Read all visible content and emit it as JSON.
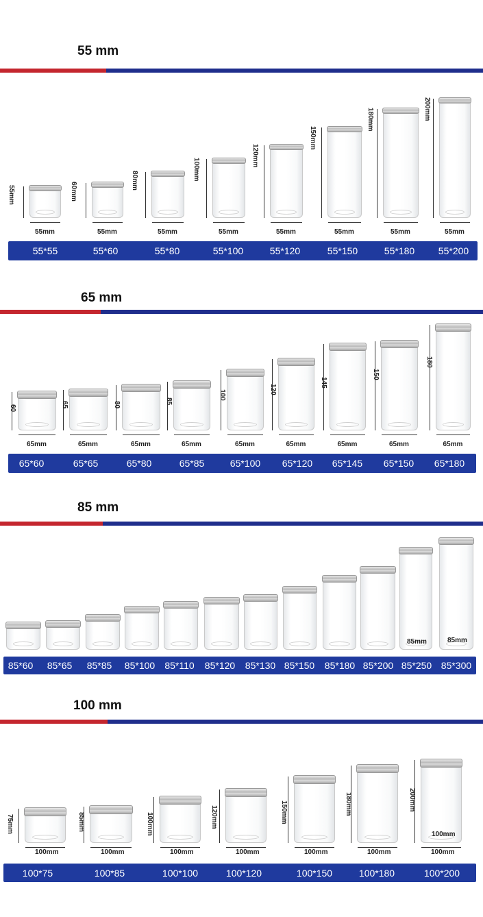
{
  "sections": [
    {
      "title": "55 mm",
      "width_label": "55mm",
      "jars": [
        {
          "label": "55*55",
          "height_label": "55mm",
          "width_label": "55mm"
        },
        {
          "label": "55*60",
          "height_label": "60mm",
          "width_label": "55mm"
        },
        {
          "label": "55*80",
          "height_label": "80mm",
          "width_label": "55mm"
        },
        {
          "label": "55*100",
          "height_label": "100mm",
          "width_label": "55mm"
        },
        {
          "label": "55*120",
          "height_label": "120mm",
          "width_label": "55mm"
        },
        {
          "label": "55*150",
          "height_label": "150mm",
          "width_label": "55mm"
        },
        {
          "label": "55*180",
          "height_label": "180mm",
          "width_label": "55mm"
        },
        {
          "label": "55*200",
          "height_label": "200mm",
          "width_label": "55mm"
        }
      ]
    },
    {
      "title": "65 mm",
      "jars": [
        {
          "label": "65*60",
          "height_label": "60",
          "width_label": "65mm"
        },
        {
          "label": "65*65",
          "height_label": "65",
          "width_label": "65mm"
        },
        {
          "label": "65*80",
          "height_label": "80",
          "width_label": "65mm"
        },
        {
          "label": "65*85",
          "height_label": "85",
          "width_label": "65mm"
        },
        {
          "label": "65*100",
          "height_label": "100",
          "width_label": "65mm"
        },
        {
          "label": "65*120",
          "height_label": "120",
          "width_label": "65mm"
        },
        {
          "label": "65*145",
          "height_label": "145",
          "width_label": "65mm"
        },
        {
          "label": "65*150",
          "height_label": "150",
          "width_label": "65mm"
        },
        {
          "label": "65*180",
          "height_label": "180",
          "width_label": "65mm"
        }
      ]
    },
    {
      "title": "85 mm",
      "jars": [
        {
          "label": "85*60"
        },
        {
          "label": "85*65"
        },
        {
          "label": "85*85"
        },
        {
          "label": "85*100"
        },
        {
          "label": "85*110"
        },
        {
          "label": "85*120"
        },
        {
          "label": "85*130"
        },
        {
          "label": "85*150"
        },
        {
          "label": "85*180"
        },
        {
          "label": "85*200"
        },
        {
          "label": "85*250",
          "inner_label": "85mm"
        },
        {
          "label": "85*300",
          "inner_label": "85mm"
        }
      ]
    },
    {
      "title": "100 mm",
      "jars": [
        {
          "label": "100*75",
          "height_label": "75mm",
          "width_label": "100mm"
        },
        {
          "label": "100*85",
          "height_label": "85mm",
          "width_label": "100mm"
        },
        {
          "label": "100*100",
          "height_label": "100mm",
          "width_label": "100mm"
        },
        {
          "label": "100*120",
          "height_label": "120mm",
          "width_label": "100mm"
        },
        {
          "label": "100*150",
          "height_label": "150mm",
          "width_label": "100mm"
        },
        {
          "label": "100*180",
          "height_label": "180mm",
          "width_label": "100mm"
        },
        {
          "label": "100*200",
          "height_label": "200mm",
          "width_label": "100mm",
          "inner_label": "100mm"
        }
      ]
    }
  ]
}
